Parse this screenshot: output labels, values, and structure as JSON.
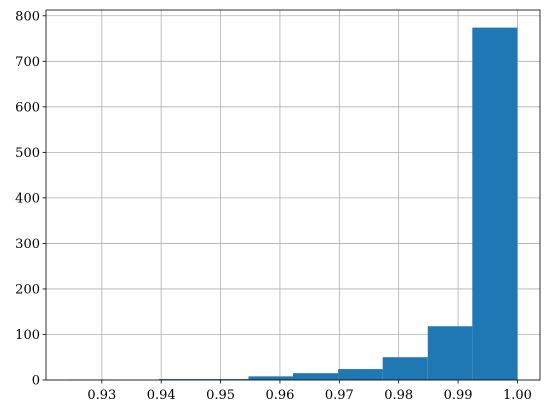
{
  "chart_data": {
    "type": "bar",
    "title": "",
    "xlabel": "",
    "ylabel": "",
    "bins": [
      {
        "x0": 0.9244,
        "x1": 0.932,
        "count": 1
      },
      {
        "x0": 0.932,
        "x1": 0.9396,
        "count": 0
      },
      {
        "x0": 0.9396,
        "x1": 0.9471,
        "count": 2
      },
      {
        "x0": 0.9471,
        "x1": 0.9547,
        "count": 2
      },
      {
        "x0": 0.9547,
        "x1": 0.9622,
        "count": 8
      },
      {
        "x0": 0.9622,
        "x1": 0.9698,
        "count": 15
      },
      {
        "x0": 0.9698,
        "x1": 0.9773,
        "count": 24
      },
      {
        "x0": 0.9773,
        "x1": 0.9849,
        "count": 50
      },
      {
        "x0": 0.9849,
        "x1": 0.9924,
        "count": 118
      },
      {
        "x0": 0.9924,
        "x1": 1.0,
        "count": 774
      }
    ],
    "xlim": [
      0.9206,
      1.0038
    ],
    "ylim": [
      0,
      812.7
    ],
    "xticks": [
      "0.93",
      "0.94",
      "0.95",
      "0.96",
      "0.97",
      "0.98",
      "0.99",
      "1.00"
    ],
    "yticks": [
      "0",
      "100",
      "200",
      "300",
      "400",
      "500",
      "600",
      "700",
      "800"
    ],
    "grid": true,
    "legend": "none",
    "colors": {
      "bar": "#1f77b4",
      "grid": "#b0b0b0",
      "axes": "#000000"
    }
  }
}
